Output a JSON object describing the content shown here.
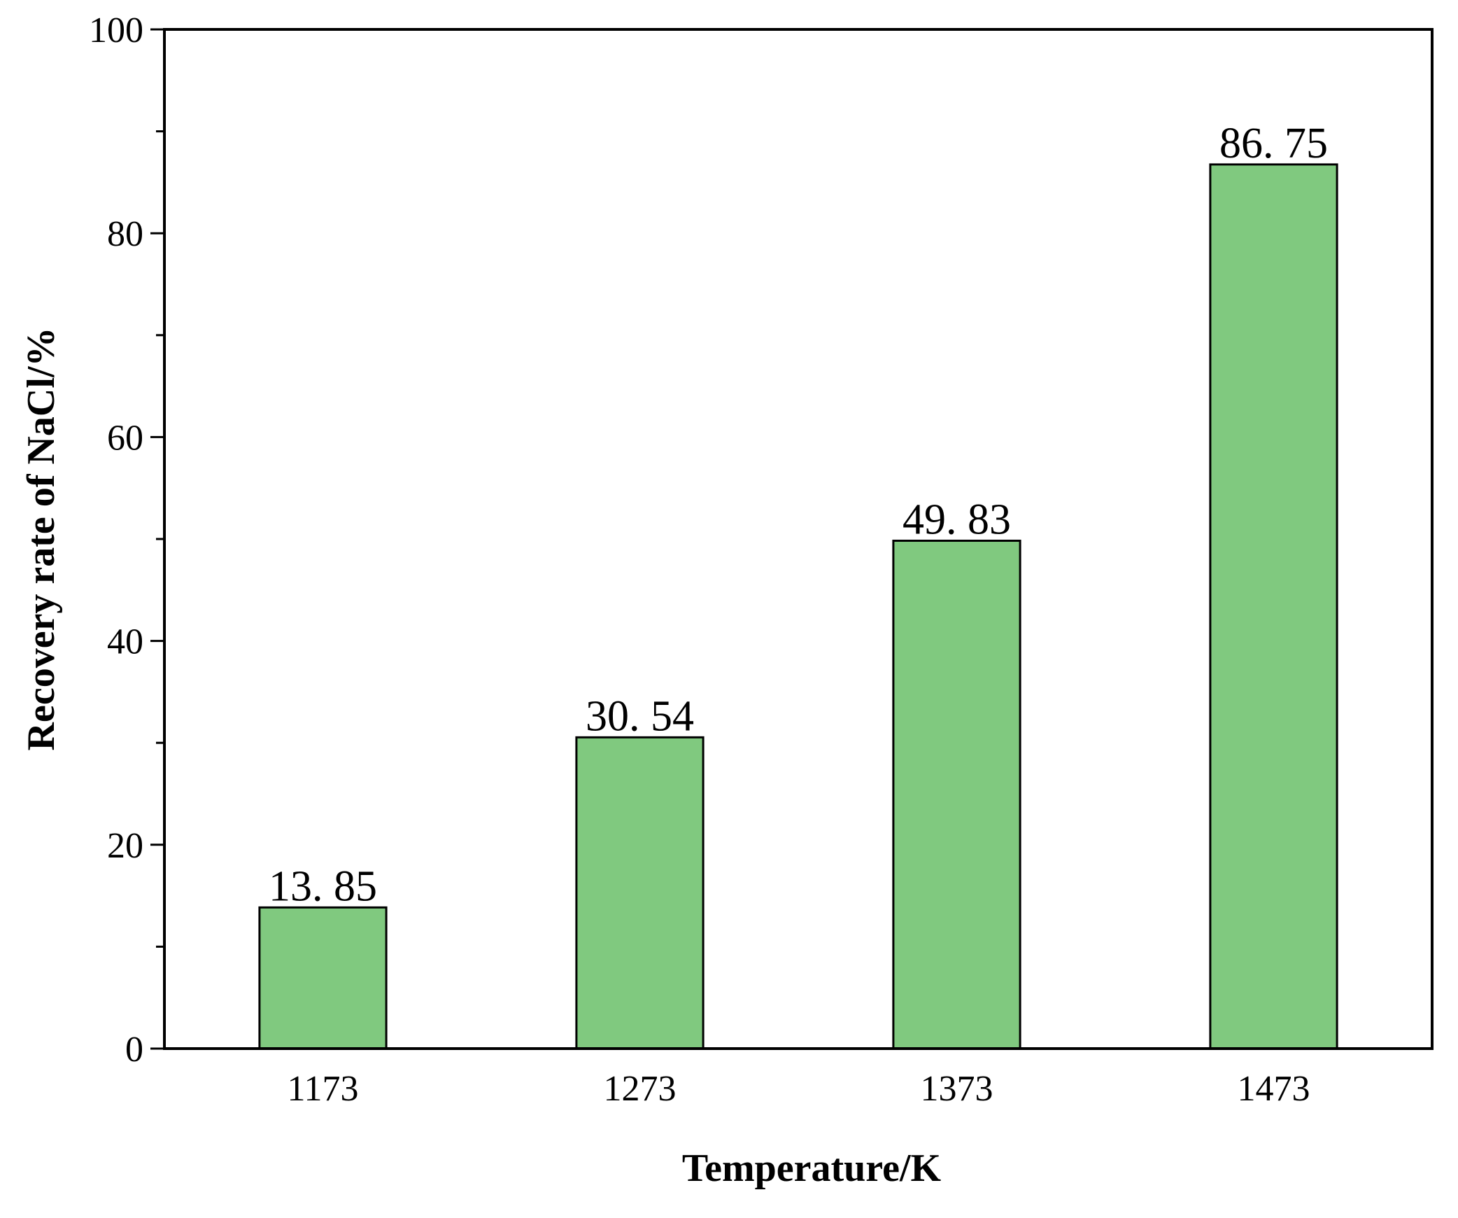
{
  "chart_data": {
    "type": "bar",
    "categories": [
      "1173",
      "1273",
      "1373",
      "1473"
    ],
    "values": [
      13.85,
      30.54,
      49.83,
      86.75
    ],
    "value_labels": [
      "13. 85",
      "30. 54",
      "49. 83",
      "86. 75"
    ],
    "xlabel": "Temperature/K",
    "ylabel": "Recovery rate of NaCl/%",
    "ylim": [
      0,
      100
    ],
    "yticks": [
      0,
      20,
      40,
      60,
      80,
      100
    ],
    "yminor_step": 10,
    "grid": false,
    "bar_color": "#80c97f",
    "edge_color": "#000000"
  }
}
